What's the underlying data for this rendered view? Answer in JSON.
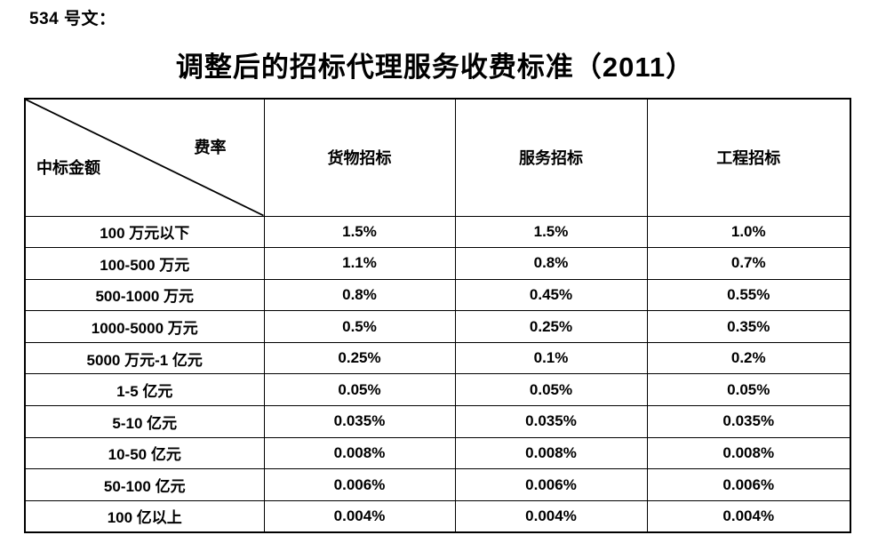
{
  "page": {
    "doc_label": "534 号文：",
    "title": "调整后的招标代理服务收费标准（2011）"
  },
  "table": {
    "corner": {
      "top_right_label": "费率",
      "bottom_left_label": "中标金额"
    },
    "column_headers": [
      "货物招标",
      "服务招标",
      "工程招标"
    ],
    "rows": [
      {
        "amount": "100 万元以下",
        "rates": [
          "1.5%",
          "1.5%",
          "1.0%"
        ]
      },
      {
        "amount": "100-500 万元",
        "rates": [
          "1.1%",
          "0.8%",
          "0.7%"
        ]
      },
      {
        "amount": "500-1000 万元",
        "rates": [
          "0.8%",
          "0.45%",
          "0.55%"
        ]
      },
      {
        "amount": "1000-5000 万元",
        "rates": [
          "0.5%",
          "0.25%",
          "0.35%"
        ]
      },
      {
        "amount": "5000 万元-1 亿元",
        "rates": [
          "0.25%",
          "0.1%",
          "0.2%"
        ]
      },
      {
        "amount": "1-5 亿元",
        "rates": [
          "0.05%",
          "0.05%",
          "0.05%"
        ]
      },
      {
        "amount": "5-10 亿元",
        "rates": [
          "0.035%",
          "0.035%",
          "0.035%"
        ]
      },
      {
        "amount": "10-50 亿元",
        "rates": [
          "0.008%",
          "0.008%",
          "0.008%"
        ]
      },
      {
        "amount": "50-100 亿元",
        "rates": [
          "0.006%",
          "0.006%",
          "0.006%"
        ]
      },
      {
        "amount": "100 亿以上",
        "rates": [
          "0.004%",
          "0.004%",
          "0.004%"
        ]
      }
    ],
    "colors": {
      "text": "#000000",
      "background": "#ffffff",
      "border": "#000000"
    }
  }
}
